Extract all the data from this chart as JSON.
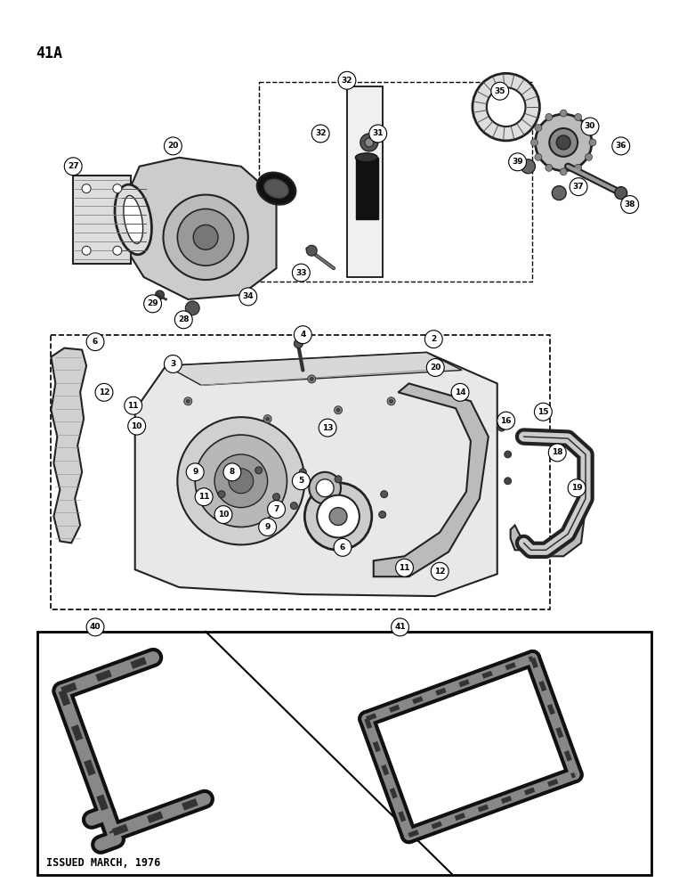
{
  "title": "41A",
  "footer": "ISSUED MARCH, 1976",
  "bg": "#ffffff",
  "lc": "#000000",
  "page_width": 7.72,
  "page_height": 10.0,
  "dpi": 100
}
